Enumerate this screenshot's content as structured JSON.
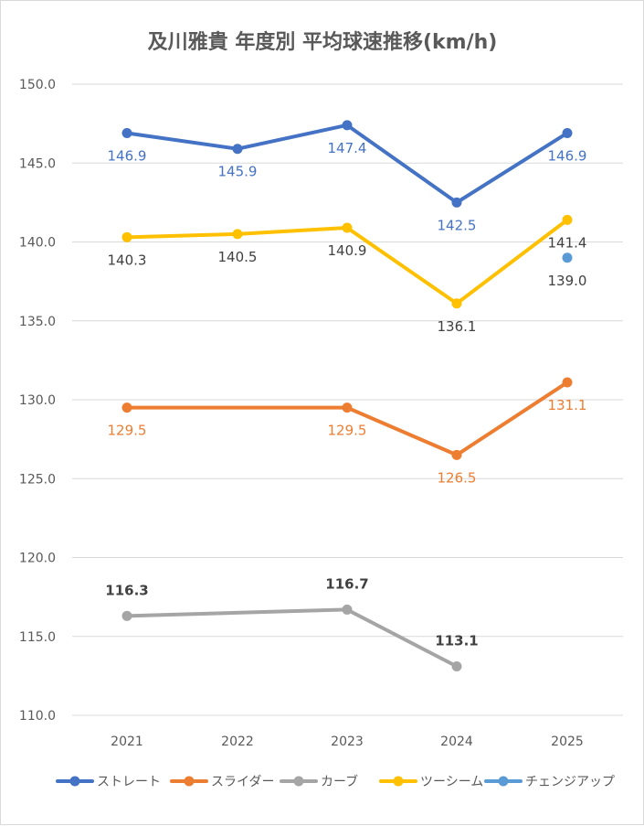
{
  "chart_data": {
    "type": "line",
    "title": "及川雅貴 年度別 平均球速推移(km/h)",
    "categories": [
      "2021",
      "2022",
      "2023",
      "2024",
      "2025"
    ],
    "y_ticks": [
      "110.0",
      "115.0",
      "120.0",
      "125.0",
      "130.0",
      "135.0",
      "140.0",
      "145.0",
      "150.0"
    ],
    "ylim": [
      110,
      150
    ],
    "grid": true,
    "legend_position": "bottom",
    "series": [
      {
        "name": "ストレート",
        "color": "#4472c4",
        "values": [
          146.9,
          145.9,
          147.4,
          142.5,
          146.9
        ],
        "labels": [
          "146.9",
          "145.9",
          "147.4",
          "142.5",
          "146.9"
        ],
        "label_pos": "below",
        "label_bold": false
      },
      {
        "name": "スライダー",
        "color": "#ed7d31",
        "values": [
          129.5,
          null,
          129.5,
          126.5,
          131.1
        ],
        "labels": [
          "129.5",
          "",
          "129.5",
          "126.5",
          "131.1"
        ],
        "label_pos": "below",
        "label_bold": false
      },
      {
        "name": "カーブ",
        "color": "#a5a5a5",
        "values": [
          116.3,
          null,
          116.7,
          113.1,
          null
        ],
        "labels": [
          "116.3",
          "",
          "116.7",
          "113.1",
          ""
        ],
        "label_pos": "above",
        "label_bold": true,
        "label_color": "#404040"
      },
      {
        "name": "ツーシーム",
        "color": "#ffc000",
        "values": [
          140.3,
          140.5,
          140.9,
          136.1,
          141.4
        ],
        "labels": [
          "140.3",
          "140.5",
          "140.9",
          "136.1",
          "141.4"
        ],
        "label_pos": "below",
        "label_bold": false,
        "label_color": "#404040"
      },
      {
        "name": "チェンジアップ",
        "color": "#5b9bd5",
        "values": [
          null,
          null,
          null,
          null,
          139.0
        ],
        "labels": [
          "",
          "",
          "",
          "",
          "139.0"
        ],
        "label_pos": "below",
        "label_bold": false,
        "label_color": "#404040"
      }
    ]
  }
}
